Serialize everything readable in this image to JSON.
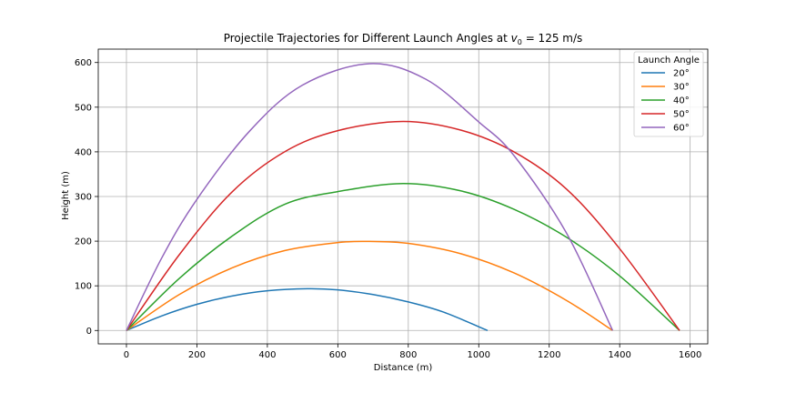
{
  "chart_data": {
    "type": "line",
    "title_prefix": "Projectile Trajectories for Different Launch Angles at ",
    "title_var": "v",
    "title_sub": "0",
    "title_suffix": " = 125 m/s",
    "xlabel": "Distance (m)",
    "ylabel": "Height (m)",
    "xlim": [
      -80,
      1650
    ],
    "ylim": [
      -30,
      630
    ],
    "xticks": [
      0,
      200,
      400,
      600,
      800,
      1000,
      1200,
      1400,
      1600
    ],
    "yticks": [
      0,
      100,
      200,
      300,
      400,
      500,
      600
    ],
    "grid": true,
    "legend": {
      "title": "Launch Angle",
      "placement": "top-right"
    },
    "series": [
      {
        "name": "20°",
        "color": "#1f77b4",
        "x": [
          0,
          100,
          200,
          300,
          400,
          513,
          600,
          700,
          800,
          900,
          1025
        ],
        "y": [
          0,
          32.6,
          58.6,
          77.3,
          88.9,
          93.4,
          90.9,
          80.4,
          63.9,
          41.1,
          0
        ]
      },
      {
        "name": "30°",
        "color": "#ff7f0e",
        "x": [
          0,
          150,
          300,
          450,
          600,
          690,
          800,
          950,
          1100,
          1250,
          1380
        ],
        "y": [
          0,
          80.6,
          140.2,
          179.0,
          196.8,
          199.3,
          195.0,
          171.6,
          128.9,
          66.8,
          0
        ]
      },
      {
        "name": "40°",
        "color": "#2ca02c",
        "x": [
          0,
          150,
          300,
          450,
          600,
          785,
          950,
          1100,
          1250,
          1400,
          1570
        ],
        "y": [
          0,
          116.6,
          211.3,
          282.9,
          311.0,
          329.0,
          312.4,
          271.4,
          208.3,
          122.2,
          0
        ]
      },
      {
        "name": "50°",
        "color": "#d62728",
        "x": [
          0,
          150,
          300,
          450,
          600,
          785,
          950,
          1100,
          1250,
          1400,
          1570
        ],
        "y": [
          0,
          169.6,
          310.3,
          400.5,
          447.5,
          468.0,
          448.4,
          400.0,
          316.0,
          183.0,
          0
        ]
      },
      {
        "name": "60°",
        "color": "#9467bd",
        "x": [
          0,
          100,
          200,
          350,
          500,
          690,
          850,
          1000,
          1100,
          1250,
          1380
        ],
        "y": [
          0,
          162.1,
          293.6,
          446.8,
          549.5,
          597.5,
          562.5,
          467.0,
          391.7,
          216.8,
          0
        ]
      }
    ]
  }
}
